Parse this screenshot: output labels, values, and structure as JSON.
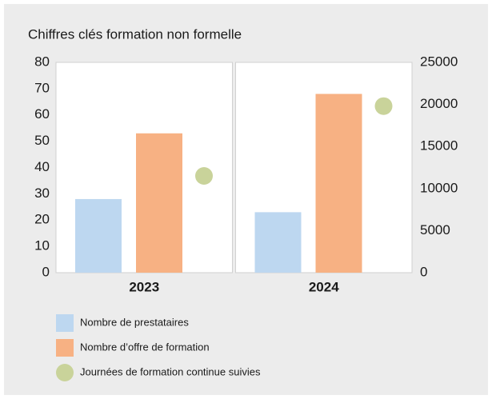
{
  "chart_data": {
    "type": "bar",
    "title": "Chiffres clés formation non formelle",
    "categories": [
      "2023",
      "2024"
    ],
    "series": [
      {
        "name": "Nombre de prestataires",
        "color": "#bdd7f0",
        "values": [
          28,
          23
        ]
      },
      {
        "name": "Nombre d’offre de formation",
        "color": "#f7b183",
        "values": [
          53,
          68
        ]
      },
      {
        "name": "Journées de formation continue suivies",
        "color": "#c9d39a",
        "values": [
          11500,
          19800
        ],
        "axis": "y2",
        "type": "scatter"
      }
    ],
    "ylim": [
      0,
      80
    ],
    "yticks": [
      0,
      10,
      20,
      30,
      40,
      50,
      60,
      70,
      80
    ],
    "y2lim": [
      0,
      25000
    ],
    "y2ticks": [
      0,
      5000,
      10000,
      15000,
      20000,
      25000
    ],
    "legend": "bottom-left"
  }
}
